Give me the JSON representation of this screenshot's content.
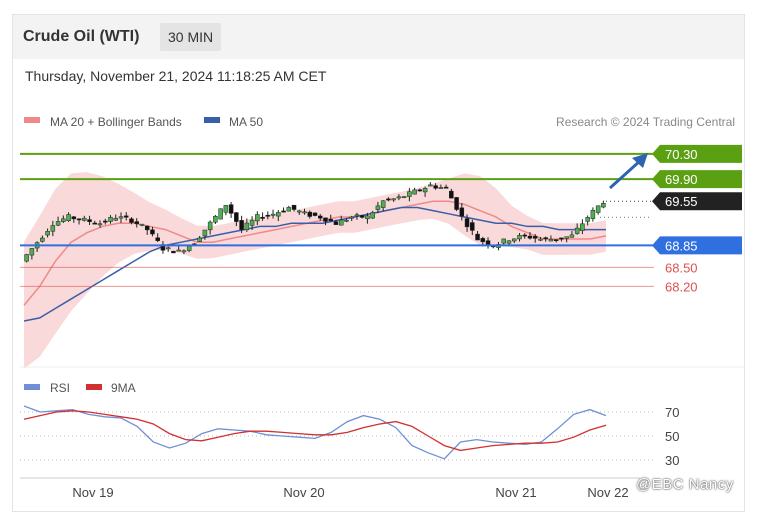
{
  "header": {
    "title": "Crude Oil (WTI)",
    "interval": "30 MIN",
    "datetime": "Thursday, November 21, 2024 11:18:25 AM CET"
  },
  "legend": {
    "ma20_label": "MA 20 + Bollinger Bands",
    "ma50_label": "MA 50",
    "credit": "Research © 2024 Trading Central"
  },
  "rsi_legend": {
    "rsi_label": "RSI",
    "ma_label": "9MA"
  },
  "watermark": "@EBC Nancy",
  "colors": {
    "resistance": "#5aa012",
    "support": "#2f6fe0",
    "minor_support": "#e05050",
    "price_tag": "#222222",
    "bollinger": "#f6c4c4",
    "ma20": "#ef8a8a",
    "ma50": "#3b5ea8",
    "rsi": "#6f8fd6",
    "rsi_ma": "#d23030",
    "arrow": "#2e63b0"
  },
  "chart_data": {
    "type": "line",
    "title": "Crude Oil (WTI)",
    "x_ticks": [
      "Nov 19",
      "Nov 20",
      "Nov 21",
      "Nov 22"
    ],
    "price_levels": [
      {
        "label": "70.30",
        "value": 70.3,
        "kind": "resistance"
      },
      {
        "label": "69.90",
        "value": 69.9,
        "kind": "resistance"
      },
      {
        "label": "69.55",
        "value": 69.55,
        "kind": "price"
      },
      {
        "label": "68.85",
        "value": 68.85,
        "kind": "support"
      },
      {
        "label": "68.50",
        "value": 68.5,
        "kind": "minor_support"
      },
      {
        "label": "68.20",
        "value": 68.2,
        "kind": "minor_support"
      }
    ],
    "ylim": [
      67.0,
      70.6
    ],
    "series": [
      {
        "name": "MA 20 + Bollinger Bands",
        "kind": "ma20",
        "values": [
          67.9,
          68.2,
          68.6,
          68.9,
          69.05,
          69.15,
          69.2,
          69.2,
          69.15,
          69.1,
          69.0,
          68.9,
          68.9,
          68.95,
          69.0,
          69.05,
          69.1,
          69.15,
          69.2,
          69.25,
          69.3,
          69.3,
          69.35,
          69.4,
          69.45,
          69.5,
          69.55,
          69.55,
          69.5,
          69.4,
          69.3,
          69.15,
          69.05,
          68.95,
          68.95,
          68.95,
          68.95,
          69.0
        ]
      },
      {
        "name": "MA 50",
        "kind": "ma50",
        "values": [
          67.65,
          67.7,
          67.85,
          68.0,
          68.15,
          68.3,
          68.45,
          68.6,
          68.75,
          68.85,
          68.9,
          68.95,
          69.0,
          69.05,
          69.1,
          69.15,
          69.15,
          69.2,
          69.2,
          69.2,
          69.25,
          69.3,
          69.35,
          69.4,
          69.45,
          69.45,
          69.4,
          69.35,
          69.3,
          69.25,
          69.2,
          69.2,
          69.15,
          69.15,
          69.1,
          69.1,
          69.1,
          69.1
        ]
      },
      {
        "name": "Price",
        "kind": "price",
        "values": [
          68.6,
          68.9,
          69.2,
          69.3,
          69.25,
          69.2,
          69.3,
          69.25,
          69.1,
          68.8,
          68.75,
          68.9,
          69.2,
          69.5,
          69.1,
          69.3,
          69.35,
          69.45,
          69.35,
          69.3,
          69.2,
          69.3,
          69.3,
          69.55,
          69.6,
          69.7,
          69.8,
          69.75,
          69.3,
          68.95,
          68.85,
          68.95,
          69.0,
          68.95,
          68.95,
          69.0,
          69.3,
          69.55
        ]
      }
    ],
    "rsi": {
      "levels": [
        70,
        50,
        30
      ],
      "ylim": [
        20,
        80
      ],
      "series": [
        {
          "name": "RSI",
          "values": [
            75,
            70,
            71,
            72,
            68,
            66,
            65,
            58,
            45,
            40,
            44,
            52,
            56,
            55,
            54,
            51,
            50,
            49,
            48,
            53,
            62,
            67,
            64,
            57,
            42,
            36,
            31,
            45,
            47,
            45,
            44,
            43,
            45,
            56,
            68,
            72,
            67
          ]
        },
        {
          "name": "9MA",
          "values": [
            64,
            67,
            70,
            71,
            70,
            68,
            66,
            64,
            60,
            52,
            47,
            46,
            49,
            52,
            54,
            54,
            53,
            52,
            51,
            51,
            53,
            57,
            60,
            62,
            58,
            50,
            42,
            38,
            40,
            42,
            43,
            44,
            44,
            45,
            49,
            55,
            59
          ]
        }
      ]
    }
  }
}
